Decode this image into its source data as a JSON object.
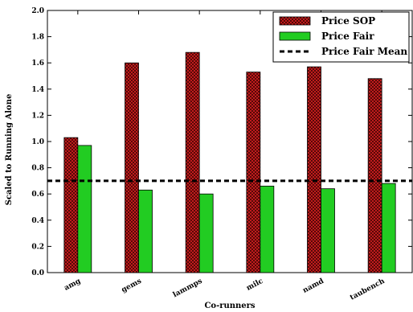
{
  "chart_data": {
    "type": "bar",
    "xlabel": "Co-runners",
    "ylabel": "Scaled to Running Alone",
    "ylim": [
      0,
      2.0
    ],
    "yticks": [
      "0.0",
      "0.2",
      "0.4",
      "0.6",
      "0.8",
      "1.0",
      "1.2",
      "1.4",
      "1.6",
      "1.8",
      "2.0"
    ],
    "categories": [
      "amg",
      "gems",
      "lammps",
      "milc",
      "namd",
      "taubench"
    ],
    "series": [
      {
        "name": "Price SOP",
        "values": [
          1.03,
          1.6,
          1.68,
          1.53,
          1.57,
          1.48
        ],
        "color": "#d42020",
        "pattern": "crosshatch"
      },
      {
        "name": "Price Fair",
        "values": [
          0.97,
          0.63,
          0.6,
          0.66,
          0.64,
          0.68
        ],
        "color": "#22cc22"
      }
    ],
    "reference_lines": [
      {
        "name": "Price Fair Mean",
        "value": 0.7,
        "style": "dashed",
        "color": "#000000"
      }
    ],
    "legend": "top-right",
    "grid": false
  }
}
